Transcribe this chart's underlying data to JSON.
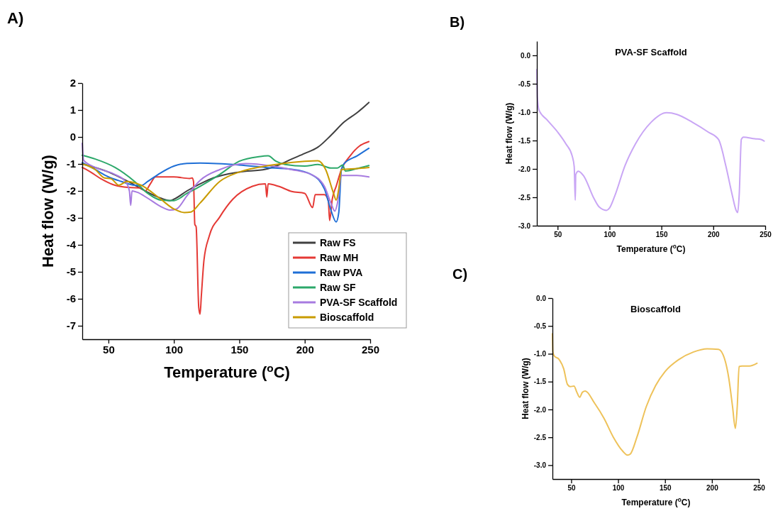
{
  "chart_data": [
    {
      "type": "line",
      "xlabel": "Temperature ($^{o}$C)",
      "ylabel": "Heat flow (W/g)",
      "annotations": [
        "A)"
      ],
      "xlim": [
        30,
        250
      ],
      "ylim": [
        -7.5,
        2
      ],
      "xticks": [
        50,
        100,
        150,
        200,
        250
      ],
      "yticks": [
        -7,
        -6,
        -5,
        -4,
        -3,
        -2,
        -1,
        0,
        1,
        2
      ],
      "legend": "bottom right",
      "series": [
        {
          "name": "Raw FS",
          "color": "#404040",
          "x": [
            30,
            50,
            65,
            80,
            90,
            97,
            100,
            110,
            120,
            130,
            150,
            170,
            180,
            190,
            200,
            210,
            220,
            230,
            240,
            249
          ],
          "values": [
            -1.0,
            -1.3,
            -1.65,
            -2.05,
            -2.27,
            -2.36,
            -2.31,
            -2.0,
            -1.74,
            -1.52,
            -1.3,
            -1.2,
            -1.04,
            -0.82,
            -0.61,
            -0.38,
            0.06,
            0.55,
            0.9,
            1.28
          ]
        },
        {
          "name": "Raw MH",
          "color": "#e53935",
          "x": [
            30,
            35,
            45,
            55,
            65,
            75,
            78,
            82,
            86,
            100,
            112,
            114,
            115,
            116,
            117,
            119,
            120,
            121,
            123,
            127,
            135,
            145,
            160,
            170,
            171,
            172,
            180,
            190,
            200,
            206,
            208,
            215,
            218,
            219,
            221,
            224,
            228,
            235,
            242,
            249
          ],
          "values": [
            -1.13,
            -1.26,
            -1.57,
            -1.79,
            -1.87,
            -1.89,
            -2.0,
            -1.74,
            -1.48,
            -1.48,
            -1.54,
            -1.52,
            -1.65,
            -3.24,
            -3.33,
            -6.32,
            -6.57,
            -5.88,
            -4.56,
            -3.68,
            -2.97,
            -2.31,
            -1.83,
            -1.74,
            -2.23,
            -1.74,
            -1.83,
            -2.02,
            -2.09,
            -2.62,
            -2.14,
            -2.14,
            -2.36,
            -3.1,
            -2.31,
            -1.83,
            -1.21,
            -0.68,
            -0.33,
            -0.17
          ]
        },
        {
          "name": "Raw PVA",
          "color": "#1f6fd6",
          "x": [
            30,
            40,
            50,
            60,
            70,
            75,
            80,
            88,
            100,
            110,
            120,
            150,
            170,
            190,
            205,
            215,
            220,
            224,
            226,
            228,
            230,
            240,
            249
          ],
          "values": [
            -0.95,
            -1.21,
            -1.48,
            -1.65,
            -1.79,
            -1.8,
            -1.65,
            -1.39,
            -1.08,
            -0.98,
            -0.97,
            -1.04,
            -1.13,
            -1.2,
            -1.39,
            -1.92,
            -2.71,
            -3.15,
            -2.8,
            -1.21,
            -0.99,
            -0.7,
            -0.42
          ]
        },
        {
          "name": "Raw SF",
          "color": "#2ca86a",
          "x": [
            30,
            40,
            55,
            70,
            80,
            90,
            100,
            110,
            120,
            135,
            150,
            165,
            172,
            178,
            185,
            200,
            210,
            220,
            225,
            229,
            231,
            240,
            249
          ],
          "values": [
            -0.68,
            -0.82,
            -1.13,
            -1.65,
            -2.09,
            -2.34,
            -2.36,
            -2.09,
            -1.83,
            -1.39,
            -0.9,
            -0.73,
            -0.7,
            -0.9,
            -1.02,
            -1.08,
            -1.02,
            -1.15,
            -1.15,
            -1.04,
            -1.26,
            -1.17,
            -1.06
          ]
        },
        {
          "name": "PVA-SF Scaffold",
          "color": "#a77be0",
          "x": [
            30,
            31,
            40,
            55,
            63,
            66,
            67,
            68,
            72,
            80,
            90,
            97,
            102,
            110,
            120,
            135,
            155,
            175,
            190,
            205,
            215,
            220,
            223,
            225,
            228,
            240,
            249
          ],
          "values": [
            -0.24,
            -0.86,
            -1.13,
            -1.39,
            -1.65,
            -2.0,
            -2.53,
            -2.0,
            -2.05,
            -2.27,
            -2.58,
            -2.71,
            -2.67,
            -2.18,
            -1.61,
            -1.21,
            -0.99,
            -1.08,
            -1.21,
            -1.39,
            -1.83,
            -2.45,
            -2.75,
            -2.45,
            -1.43,
            -1.43,
            -1.48
          ]
        },
        {
          "name": "Bioscaffold",
          "color": "#c99b00",
          "x": [
            30,
            40,
            47,
            52,
            58,
            64,
            75,
            90,
            100,
            108,
            113,
            120,
            135,
            150,
            175,
            200,
            210,
            216,
            222,
            224,
            226,
            228,
            240,
            249
          ],
          "values": [
            -1.0,
            -1.21,
            -1.52,
            -1.55,
            -1.79,
            -1.65,
            -1.79,
            -2.31,
            -2.67,
            -2.8,
            -2.78,
            -2.45,
            -1.65,
            -1.3,
            -1.04,
            -0.9,
            -0.88,
            -1.21,
            -2.09,
            -2.34,
            -1.92,
            -1.21,
            -1.17,
            -1.13
          ]
        }
      ]
    },
    {
      "type": "line",
      "title": "PVA-SF Scaffold",
      "xlabel": "Temperature ($^{o}$C)",
      "ylabel": "Heat flow (W/g)",
      "annotations": [
        "B)"
      ],
      "xlim": [
        30,
        250
      ],
      "ylim": [
        -3,
        0.25
      ],
      "xticks": [
        50,
        100,
        150,
        200,
        250
      ],
      "yticks": [
        {
          "value": -3,
          "label": "-3.0"
        },
        {
          "value": -2.5,
          "label": "-2.5"
        },
        {
          "value": -2,
          "label": "-2.0"
        },
        {
          "value": -1.5,
          "label": "-1.5"
        },
        {
          "value": -1,
          "label": "-1.0"
        },
        {
          "value": -0.5,
          "label": "-0.5"
        },
        {
          "value": 0,
          "label": "0.0"
        }
      ],
      "series": [
        {
          "color": "#c9a6f5",
          "x": [
            30,
            30.5,
            32,
            40,
            50,
            58,
            64,
            66,
            67,
            67.5,
            70,
            75,
            85,
            90,
            97,
            100,
            105,
            115,
            125,
            140,
            155,
            165,
            180,
            195,
            205,
            212,
            218,
            222,
            223.5,
            225,
            227,
            229,
            240,
            246,
            249
          ],
          "values": [
            -0.25,
            -0.73,
            -0.96,
            -1.14,
            -1.35,
            -1.56,
            -1.77,
            -1.96,
            -2.55,
            -2.1,
            -2.04,
            -2.12,
            -2.52,
            -2.67,
            -2.73,
            -2.69,
            -2.48,
            -1.94,
            -1.56,
            -1.18,
            -1.01,
            -1.04,
            -1.18,
            -1.35,
            -1.48,
            -1.94,
            -2.44,
            -2.73,
            -2.77,
            -2.44,
            -1.48,
            -1.44,
            -1.47,
            -1.48,
            -1.51
          ]
        }
      ]
    },
    {
      "type": "line",
      "title": "Bioscaffold",
      "xlabel": "Temperature ($^{o}$C)",
      "ylabel": "Heat flow (W/g)",
      "annotations": [
        "C)"
      ],
      "xlim": [
        30,
        250
      ],
      "ylim": [
        -3.25,
        0
      ],
      "xticks": [
        50,
        100,
        150,
        200,
        250
      ],
      "yticks": [
        {
          "value": -3,
          "label": "-3.0"
        },
        {
          "value": -2.5,
          "label": "-2.5"
        },
        {
          "value": -2,
          "label": "-2.0"
        },
        {
          "value": -1.5,
          "label": "-1.5"
        },
        {
          "value": -1,
          "label": "-1.0"
        },
        {
          "value": -0.5,
          "label": "-0.5"
        },
        {
          "value": 0,
          "label": "0.0"
        }
      ],
      "series": [
        {
          "color": "#eec25a",
          "x": [
            30,
            30.5,
            32,
            37,
            42,
            46,
            49,
            53,
            56,
            59,
            62,
            65,
            75,
            85,
            95,
            105,
            110,
            113,
            120,
            130,
            140,
            150,
            165,
            180,
            195,
            207,
            212,
            218,
            222,
            225,
            227,
            229,
            232,
            240,
            248
          ],
          "values": [
            -0.64,
            -0.97,
            -1.04,
            -1.1,
            -1.27,
            -1.55,
            -1.59,
            -1.58,
            -1.69,
            -1.78,
            -1.69,
            -1.67,
            -1.89,
            -2.16,
            -2.5,
            -2.75,
            -2.82,
            -2.8,
            -2.5,
            -1.95,
            -1.57,
            -1.32,
            -1.1,
            -0.97,
            -0.91,
            -0.92,
            -1.02,
            -1.44,
            -1.95,
            -2.34,
            -1.95,
            -1.23,
            -1.22,
            -1.22,
            -1.17
          ]
        }
      ]
    }
  ]
}
